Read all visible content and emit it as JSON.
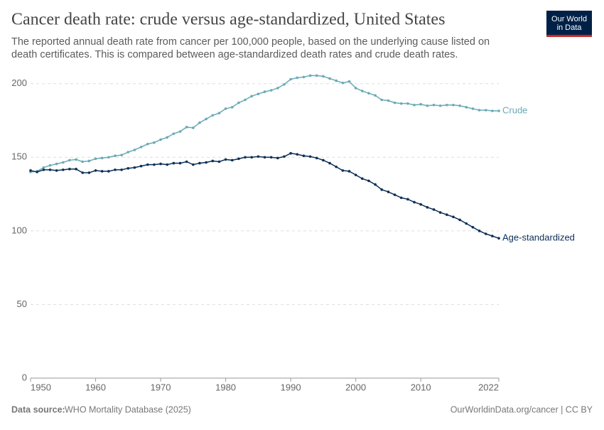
{
  "header": {
    "title": "Cancer death rate: crude versus age-standardized, United States",
    "subtitle_lines": [
      "The reported annual death rate from cancer per 100,000 people, based on the underlying cause listed on",
      "death certificates. This is compared between age-standardized death rates and crude death rates."
    ],
    "logo": [
      "Our World",
      "in Data"
    ]
  },
  "footer": {
    "source_label": "Data source:",
    "source": "WHO Mortality Database (2025)",
    "credit": "OurWorldinData.org/cancer | CC BY"
  },
  "chart_data": {
    "type": "line",
    "x": [
      1950,
      1951,
      1952,
      1953,
      1954,
      1955,
      1956,
      1957,
      1958,
      1959,
      1960,
      1961,
      1962,
      1963,
      1964,
      1965,
      1966,
      1967,
      1968,
      1969,
      1970,
      1971,
      1972,
      1973,
      1974,
      1975,
      1976,
      1977,
      1978,
      1979,
      1980,
      1981,
      1982,
      1983,
      1984,
      1985,
      1986,
      1987,
      1988,
      1989,
      1990,
      1991,
      1992,
      1993,
      1994,
      1995,
      1996,
      1997,
      1998,
      1999,
      2000,
      2001,
      2002,
      2003,
      2004,
      2005,
      2006,
      2007,
      2008,
      2009,
      2010,
      2011,
      2012,
      2013,
      2014,
      2015,
      2016,
      2017,
      2018,
      2019,
      2020,
      2021,
      2022
    ],
    "series": [
      {
        "name": "Crude",
        "color": "#6aaab5",
        "values": [
          140,
          140.5,
          143,
          144.5,
          145.5,
          146.5,
          148,
          148.5,
          147,
          147.5,
          149,
          149.5,
          150,
          151,
          151.5,
          153.5,
          155,
          157,
          159,
          160,
          162,
          163.5,
          166,
          167.5,
          170.5,
          170,
          173.5,
          176,
          178.5,
          180,
          183,
          184,
          187,
          189,
          191.5,
          193,
          194.5,
          195.5,
          197,
          199.5,
          203,
          204,
          204.5,
          205.5,
          205.5,
          205,
          203.5,
          202,
          200.5,
          201.5,
          197,
          195,
          193.5,
          192,
          189,
          188.5,
          187,
          186.5,
          186.5,
          185.5,
          186,
          185,
          185.5,
          185,
          185.5,
          185.5,
          185,
          184,
          183,
          182,
          182,
          181.5,
          181.5
        ]
      },
      {
        "name": "Age-standardized",
        "color": "#0b2f57",
        "values": [
          141,
          140,
          141.5,
          141.5,
          141,
          141.5,
          142,
          142,
          139.5,
          139.5,
          141,
          140.5,
          140.5,
          141.5,
          141.5,
          142.5,
          143,
          144,
          145,
          145,
          145.5,
          145,
          146,
          146,
          147,
          145,
          146,
          146.5,
          147.5,
          147,
          148.5,
          148,
          149,
          150,
          150,
          150.5,
          150,
          150,
          149.5,
          150.5,
          152.7,
          152,
          151,
          150.5,
          149.5,
          148,
          146,
          143.5,
          141,
          140.5,
          138,
          135.5,
          134,
          131.5,
          128,
          126.5,
          124.5,
          122.5,
          121.5,
          119.5,
          118,
          116,
          114.5,
          112.5,
          111,
          109.5,
          107.5,
          105,
          102.5,
          100,
          98,
          96.5,
          95
        ]
      }
    ],
    "xlim": [
      1950,
      2022
    ],
    "xticks": [
      1950,
      1960,
      1970,
      1980,
      1990,
      2000,
      2010,
      2022
    ],
    "ylim": [
      0,
      210
    ],
    "yticks": [
      0,
      50,
      100,
      150,
      200
    ],
    "grid": true
  }
}
